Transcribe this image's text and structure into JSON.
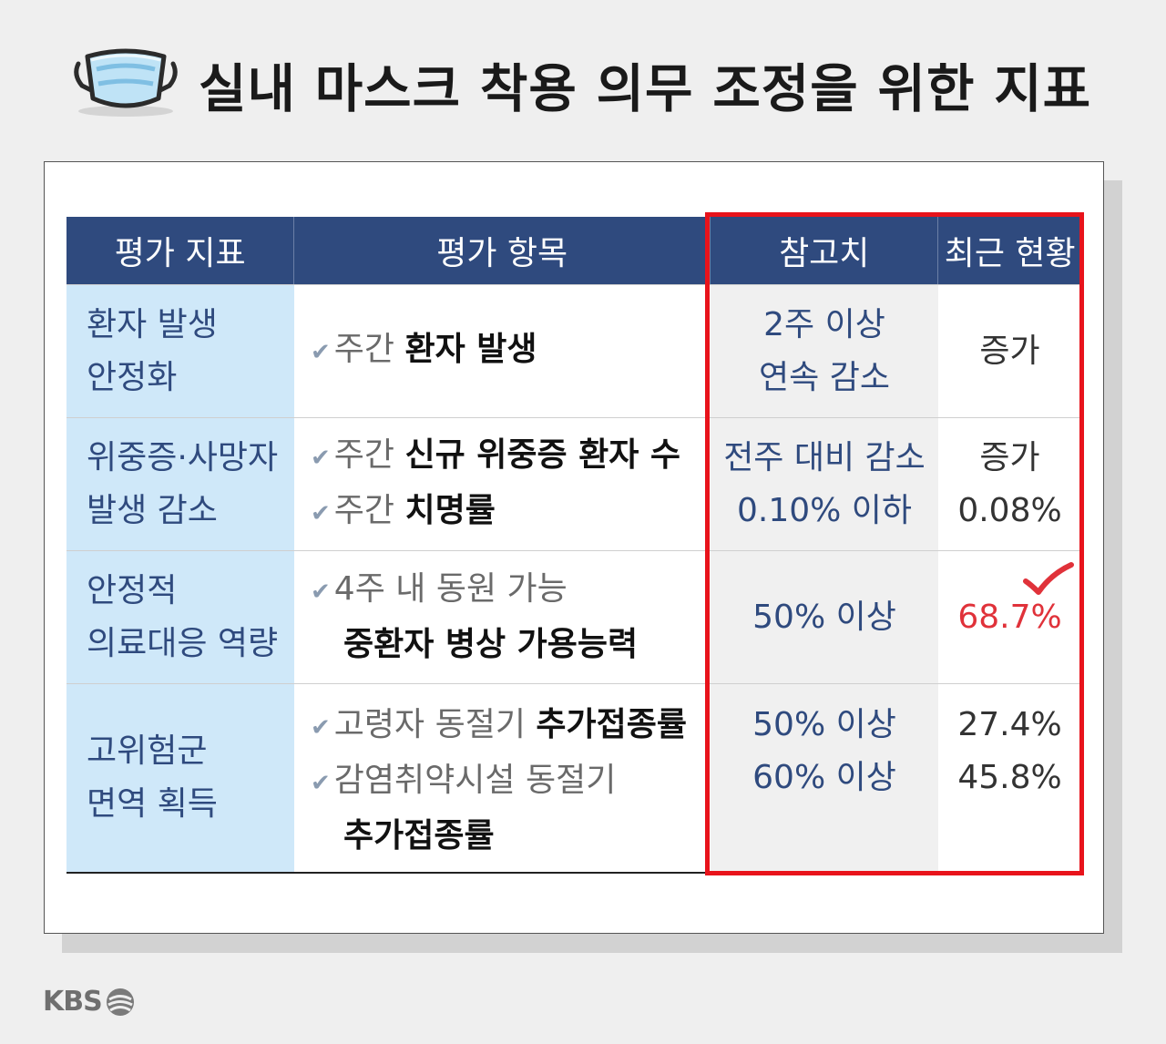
{
  "title": "실내 마스크 착용 의무 조정을 위한 지표",
  "table": {
    "headers": [
      "평가 지표",
      "평가 항목",
      "참고치",
      "최근 현황"
    ],
    "rows": [
      {
        "indicator": [
          "환자 발생",
          "안정화"
        ],
        "items": [
          {
            "check": true,
            "normal": "주간 ",
            "bold": "환자 발생"
          }
        ],
        "reference": [
          "2주 이상",
          "연속 감소"
        ],
        "status": [
          "증가"
        ]
      },
      {
        "indicator": [
          "위중증·사망자",
          "발생 감소"
        ],
        "items": [
          {
            "check": true,
            "normal": "주간 ",
            "bold": "신규 위중증 환자 수"
          },
          {
            "check": true,
            "normal": "주간 ",
            "bold": "치명률"
          }
        ],
        "reference": [
          "전주 대비 감소",
          "0.10% 이하"
        ],
        "status": [
          "증가",
          "0.08%"
        ]
      },
      {
        "indicator": [
          "안정적",
          "의료대응 역량"
        ],
        "items": [
          {
            "check": true,
            "normal": "4주 내 동원 가능",
            "bold": ""
          },
          {
            "check": false,
            "normal": "",
            "bold": "중환자 병상 가용능력"
          }
        ],
        "reference": [
          "50% 이상"
        ],
        "status": [
          "68.7%"
        ]
      },
      {
        "indicator": [
          "고위험군",
          "면역 획득"
        ],
        "items": [
          {
            "check": true,
            "normal": "고령자 동절기 ",
            "bold": "추가접종률"
          },
          {
            "check": true,
            "normal": "감염취약시설 동절기",
            "bold": ""
          },
          {
            "check": false,
            "normal": "",
            "bold": "추가접종률"
          }
        ],
        "reference": [
          "50% 이상",
          "60% 이상"
        ],
        "status": [
          "27.4%",
          "45.8%"
        ]
      }
    ]
  },
  "logo": "KBS",
  "colors": {
    "header_bg": "#2f4a7e",
    "indicator_bg": "#cfe8f9",
    "reference_bg": "#f0f0f0",
    "highlight": "#e8131b",
    "alert_value": "#e0323a"
  },
  "icons": {
    "title": "face-mask-icon",
    "check": "check-mark-icon",
    "logo": "kbs-logo-icon"
  }
}
